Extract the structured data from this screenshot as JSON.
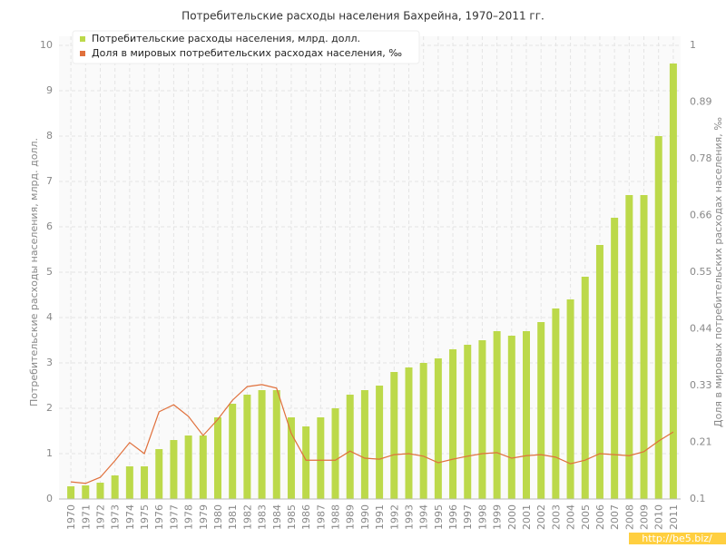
{
  "chart_data": {
    "type": "bar_line",
    "title": "Потребительские расходы населения Бахрейна, 1970–2011 гг.",
    "ylabel": "Потребительские расходы населения, млрд. долл.",
    "y2label": "Доля в мировых потребительских расходах населения, ‰",
    "watermark": "http://be5.biz/",
    "categories": [
      "1970",
      "1971",
      "1972",
      "1973",
      "1974",
      "1975",
      "1976",
      "1977",
      "1978",
      "1979",
      "1980",
      "1981",
      "1982",
      "1983",
      "1984",
      "1985",
      "1986",
      "1987",
      "1988",
      "1989",
      "1990",
      "1991",
      "1992",
      "1993",
      "1994",
      "1995",
      "1996",
      "1997",
      "1998",
      "1999",
      "2000",
      "2001",
      "2002",
      "2003",
      "2004",
      "2005",
      "2006",
      "2007",
      "2008",
      "2009",
      "2010",
      "2011"
    ],
    "series": [
      {
        "name": "Потребительские расходы населения, млрд. долл.",
        "type": "bar",
        "color": "#bcd94a",
        "values": [
          0.28,
          0.3,
          0.36,
          0.52,
          0.72,
          0.72,
          1.1,
          1.3,
          1.4,
          1.4,
          1.8,
          2.1,
          2.3,
          2.4,
          2.4,
          1.8,
          1.6,
          1.8,
          2.0,
          2.3,
          2.4,
          2.5,
          2.8,
          2.9,
          3.0,
          3.1,
          3.3,
          3.4,
          3.5,
          3.7,
          3.6,
          3.7,
          3.9,
          4.2,
          4.4,
          4.9,
          5.6,
          6.2,
          6.7,
          6.7,
          8.0,
          9.6
        ]
      },
      {
        "name": "Доля в мировых потребительских расходах населения, ‰",
        "type": "line",
        "axis": "y2",
        "color": "#e0703c",
        "values": [
          0.134,
          0.131,
          0.143,
          0.176,
          0.212,
          0.19,
          0.273,
          0.287,
          0.264,
          0.226,
          0.258,
          0.296,
          0.323,
          0.327,
          0.32,
          0.23,
          0.177,
          0.177,
          0.177,
          0.195,
          0.181,
          0.179,
          0.188,
          0.19,
          0.185,
          0.172,
          0.179,
          0.185,
          0.19,
          0.192,
          0.181,
          0.186,
          0.188,
          0.183,
          0.17,
          0.177,
          0.19,
          0.188,
          0.186,
          0.194,
          0.215,
          0.233
        ]
      }
    ],
    "ylim": [
      0,
      10
    ],
    "yticks": [
      0,
      1,
      2,
      3,
      4,
      5,
      6,
      7,
      8,
      9,
      10
    ],
    "y2lim": [
      0.1,
      1
    ],
    "y2ticks": [
      0.1,
      {
        "value": 0.2125,
        "label": "0.21"
      },
      {
        "value": 0.325,
        "label": "0.33"
      },
      {
        "value": 0.4375,
        "label": "0.44"
      },
      0.55,
      {
        "value": 0.6625,
        "label": "0.66"
      },
      {
        "value": 0.775,
        "label": "0.78"
      },
      {
        "value": 0.8875,
        "label": "0.89"
      },
      1
    ],
    "grid": true,
    "legend": "top-left"
  }
}
